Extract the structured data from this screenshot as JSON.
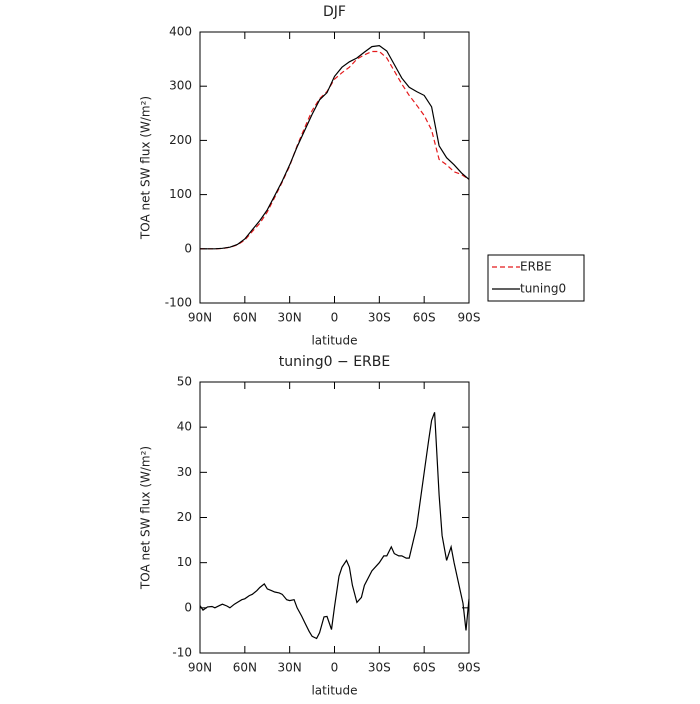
{
  "chart_data": [
    {
      "type": "line",
      "title": "DJF",
      "xlabel": "latitude",
      "ylabel": "TOA net SW flux (W/m²)",
      "x": [
        90,
        85,
        80,
        75,
        70,
        65,
        60,
        55,
        50,
        45,
        40,
        35,
        30,
        25,
        20,
        15,
        10,
        5,
        0,
        -5,
        -10,
        -15,
        -20,
        -25,
        -30,
        -35,
        -40,
        -45,
        -50,
        -55,
        -60,
        -65,
        -70,
        -75,
        -80,
        -85,
        -90
      ],
      "xlim": [
        90,
        -90
      ],
      "xticks": [
        {
          "value": 90,
          "label": "90N"
        },
        {
          "value": 60,
          "label": "60N"
        },
        {
          "value": 30,
          "label": "30N"
        },
        0,
        {
          "value": -30,
          "label": "30S"
        },
        {
          "value": -60,
          "label": "60S"
        },
        {
          "value": -90,
          "label": "90S"
        }
      ],
      "ylim": [
        -100,
        400
      ],
      "yticks": [
        -100,
        0,
        100,
        200,
        300,
        400
      ],
      "legend": "right",
      "series": [
        {
          "name": "ERBE",
          "color": "#e41a1c",
          "dashed": true,
          "values": [
            0,
            0,
            0,
            0.5,
            3,
            7,
            16,
            32,
            47,
            68,
            95,
            123,
            153,
            190,
            223,
            255,
            277,
            290,
            313,
            325,
            335,
            350,
            358,
            364,
            364,
            352,
            328,
            304,
            283,
            265,
            246,
            219,
            165,
            155,
            142,
            137,
            128
          ]
        },
        {
          "name": "tuning0",
          "color": "#000000",
          "dashed": false,
          "values": [
            0,
            0,
            0,
            1,
            3,
            8,
            18,
            35,
            52,
            72,
            98,
            125,
            155,
            188,
            218,
            248,
            275,
            288,
            318,
            335,
            345,
            352,
            363,
            373,
            375,
            365,
            340,
            315,
            298,
            290,
            283,
            262,
            190,
            168,
            155,
            140,
            128
          ]
        }
      ]
    },
    {
      "type": "line",
      "title": "tuning0 − ERBE",
      "xlabel": "latitude",
      "ylabel": "TOA net SW flux (W/m²)",
      "x": [
        90,
        88,
        85,
        82,
        80,
        77,
        75,
        72,
        70,
        67,
        65,
        62,
        60,
        57,
        55,
        52,
        50,
        47,
        45,
        42,
        40,
        37,
        35,
        32,
        30,
        27,
        25,
        22,
        20,
        17,
        15,
        12,
        10,
        7,
        5,
        2,
        0,
        -3,
        -5,
        -8,
        -10,
        -12,
        -15,
        -18,
        -20,
        -25,
        -30,
        -33,
        -35,
        -38,
        -40,
        -43,
        -45,
        -48,
        -50,
        -55,
        -60,
        -63,
        -65,
        -67,
        -70,
        -72,
        -75,
        -78,
        -80,
        -84,
        -86,
        -88,
        -90
      ],
      "xlim": [
        90,
        -90
      ],
      "xticks": [
        {
          "value": 90,
          "label": "90N"
        },
        {
          "value": 60,
          "label": "60N"
        },
        {
          "value": 30,
          "label": "30N"
        },
        0,
        {
          "value": -30,
          "label": "30S"
        },
        {
          "value": -60,
          "label": "60S"
        },
        {
          "value": -90,
          "label": "90S"
        }
      ],
      "ylim": [
        -10,
        50
      ],
      "yticks": [
        -10,
        0,
        10,
        20,
        30,
        40,
        50
      ],
      "series": [
        {
          "name": "tuning0",
          "color": "#000000",
          "dashed": false,
          "values": [
            0.5,
            -0.5,
            0.2,
            0.3,
            0,
            0.5,
            0.8,
            0.4,
            0,
            0.8,
            1.2,
            1.8,
            2,
            2.7,
            3,
            3.8,
            4.5,
            5.3,
            4.2,
            3.8,
            3.5,
            3.3,
            3,
            1.8,
            1.6,
            1.8,
            0,
            -1.8,
            -3.2,
            -5.2,
            -6.3,
            -6.8,
            -5.5,
            -2,
            -1.9,
            -4.8,
            0.2,
            7,
            9,
            10.5,
            9,
            5,
            1.2,
            2.3,
            5,
            8.2,
            10,
            11.5,
            11.5,
            13.5,
            12,
            11.5,
            11.5,
            11,
            11,
            18,
            30,
            37,
            41.5,
            43.3,
            25,
            16,
            10.5,
            13.5,
            10,
            4,
            1,
            -5,
            2
          ]
        }
      ]
    }
  ]
}
